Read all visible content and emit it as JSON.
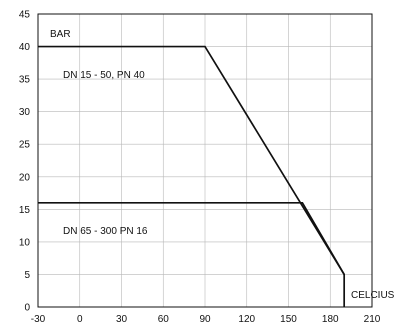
{
  "chart_data": {
    "type": "line",
    "title": "",
    "xlabel": "CELCIUS",
    "ylabel": "BAR",
    "xlim": [
      -30,
      210
    ],
    "ylim": [
      0,
      45
    ],
    "xticks": [
      -30,
      0,
      30,
      60,
      90,
      120,
      150,
      180,
      210
    ],
    "yticks": [
      0,
      5,
      10,
      15,
      20,
      25,
      30,
      35,
      40,
      45
    ],
    "grid": true,
    "series": [
      {
        "name": "DN 15 - 50, PN 40",
        "x": [
          -30,
          90,
          190,
          190
        ],
        "y": [
          40,
          40,
          5,
          0
        ]
      },
      {
        "name": "DN 65 - 300 PN 16",
        "x": [
          -30,
          160,
          190
        ],
        "y": [
          16,
          16,
          5
        ]
      }
    ]
  }
}
